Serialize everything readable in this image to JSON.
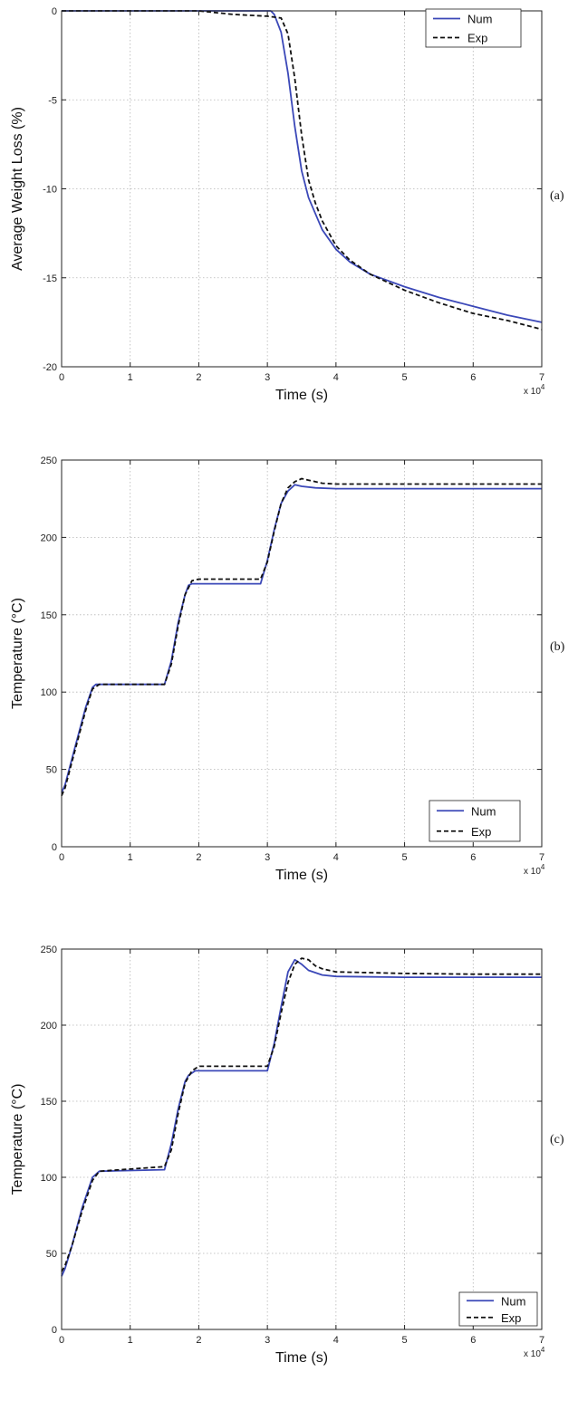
{
  "chart_data": [
    {
      "type": "line",
      "panel_label": "(a)",
      "xlabel": "Time (s)",
      "ylabel": "Average Weight Loss (%)",
      "x_multiplier": "x 10",
      "x_multiplier_exp": "4",
      "xlim": [
        0,
        7
      ],
      "ylim": [
        -20,
        0
      ],
      "xticks": [
        "0",
        "1",
        "2",
        "3",
        "4",
        "5",
        "6",
        "7"
      ],
      "yticks": [
        "-20",
        "-15",
        "-10",
        "-5",
        "0"
      ],
      "legend_position": "top-right",
      "series": [
        {
          "name": "Num",
          "color": "#3b48b8",
          "style": "solid",
          "x": [
            0,
            1,
            2,
            3.05,
            3.1,
            3.2,
            3.3,
            3.4,
            3.5,
            3.6,
            3.8,
            4.0,
            4.2,
            4.5,
            5,
            5.5,
            6,
            6.5,
            7
          ],
          "y": [
            0,
            0,
            0,
            0,
            -0.2,
            -1.2,
            -3.5,
            -6.5,
            -9,
            -10.5,
            -12.3,
            -13.4,
            -14.1,
            -14.8,
            -15.5,
            -16.1,
            -16.6,
            -17.1,
            -17.5
          ]
        },
        {
          "name": "Exp",
          "color": "#111111",
          "style": "dashed",
          "x": [
            0,
            1,
            2,
            2.5,
            3.0,
            3.2,
            3.3,
            3.4,
            3.5,
            3.6,
            3.7,
            3.8,
            4.0,
            4.2,
            4.5,
            5,
            5.5,
            6,
            6.5,
            7
          ],
          "y": [
            0,
            0,
            0,
            -0.2,
            -0.3,
            -0.4,
            -1.3,
            -3.8,
            -7,
            -9.5,
            -10.8,
            -11.8,
            -13.2,
            -14,
            -14.8,
            -15.7,
            -16.4,
            -17,
            -17.4,
            -17.9
          ]
        }
      ]
    },
    {
      "type": "line",
      "panel_label": "(b)",
      "xlabel": "Time (s)",
      "ylabel": "Temperature (°C)",
      "x_multiplier": "x 10",
      "x_multiplier_exp": "4",
      "xlim": [
        0,
        7
      ],
      "ylim": [
        0,
        250
      ],
      "xticks": [
        "0",
        "1",
        "2",
        "3",
        "4",
        "5",
        "6",
        "7"
      ],
      "yticks": [
        "0",
        "50",
        "100",
        "150",
        "200",
        "250"
      ],
      "legend_position": "bottom-right",
      "series": [
        {
          "name": "Num",
          "color": "#3b48b8",
          "style": "solid",
          "x": [
            0,
            0.05,
            0.2,
            0.35,
            0.45,
            0.5,
            1.5,
            1.6,
            1.7,
            1.8,
            1.85,
            1.9,
            2.9,
            3.0,
            3.1,
            3.2,
            3.3,
            3.4,
            3.5,
            3.7,
            4,
            5,
            6,
            7
          ],
          "y": [
            35,
            40,
            65,
            90,
            103,
            105,
            105,
            120,
            145,
            163,
            169,
            170,
            170,
            185,
            205,
            222,
            230,
            234,
            233,
            232,
            231.5,
            231.5,
            231.5,
            231.5
          ]
        },
        {
          "name": "Exp",
          "color": "#111111",
          "style": "dashed",
          "x": [
            0,
            0.05,
            0.2,
            0.35,
            0.45,
            0.55,
            1.5,
            1.6,
            1.7,
            1.8,
            1.9,
            2.0,
            2.9,
            3.0,
            3.1,
            3.2,
            3.3,
            3.4,
            3.5,
            3.6,
            3.8,
            4,
            5,
            6,
            7
          ],
          "y": [
            33,
            38,
            63,
            88,
            102,
            105,
            105,
            118,
            143,
            163,
            172,
            173,
            173,
            184,
            204,
            222,
            232,
            236,
            238,
            237,
            235,
            234.5,
            234.5,
            234.5,
            234.5
          ]
        }
      ]
    },
    {
      "type": "line",
      "panel_label": "(c)",
      "xlabel": "Time (s)",
      "ylabel": "Temperature (°C)",
      "x_multiplier": "x 10",
      "x_multiplier_exp": "4",
      "xlim": [
        0,
        7
      ],
      "ylim": [
        0,
        250
      ],
      "xticks": [
        "0",
        "1",
        "2",
        "3",
        "4",
        "5",
        "6",
        "7"
      ],
      "yticks": [
        "0",
        "50",
        "100",
        "150",
        "200",
        "250"
      ],
      "legend_position": "bottom-right",
      "series": [
        {
          "name": "Num",
          "color": "#3b48b8",
          "style": "solid",
          "x": [
            0,
            0.05,
            0.15,
            0.3,
            0.45,
            0.55,
            1.5,
            1.6,
            1.7,
            1.8,
            1.85,
            1.95,
            3.0,
            3.1,
            3.2,
            3.3,
            3.4,
            3.5,
            3.6,
            3.8,
            4,
            5,
            6,
            7
          ],
          "y": [
            35,
            40,
            55,
            80,
            100,
            104,
            105,
            122,
            145,
            163,
            167,
            170,
            170,
            188,
            212,
            235,
            243,
            240,
            236,
            233,
            232,
            231.5,
            231.5,
            231.5
          ]
        },
        {
          "name": "Exp",
          "color": "#111111",
          "style": "dashed",
          "x": [
            0,
            0.05,
            0.15,
            0.3,
            0.45,
            0.55,
            1.5,
            1.6,
            1.7,
            1.8,
            1.9,
            2.0,
            3.0,
            3.1,
            3.2,
            3.3,
            3.4,
            3.5,
            3.6,
            3.7,
            3.8,
            4,
            5,
            6,
            7
          ],
          "y": [
            38,
            42,
            55,
            78,
            98,
            104,
            107,
            118,
            142,
            162,
            170,
            173,
            173,
            186,
            208,
            228,
            240,
            244,
            243,
            239,
            237,
            235,
            234,
            233.5,
            233.5
          ]
        }
      ]
    }
  ]
}
